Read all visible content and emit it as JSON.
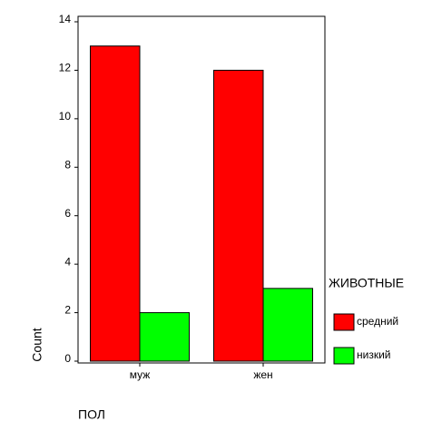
{
  "chart_data": {
    "type": "bar",
    "categories": [
      "муж",
      "жен"
    ],
    "series": [
      {
        "name": "средний",
        "color": "#ff0000",
        "values": [
          13,
          12
        ]
      },
      {
        "name": "низкий",
        "color": "#00ff00",
        "values": [
          2,
          3
        ]
      }
    ],
    "ylim": [
      0,
      14
    ],
    "yticks": [
      0,
      2,
      4,
      6,
      8,
      10,
      12,
      14
    ],
    "y_label": "Count",
    "x_label": "ПОЛ",
    "legend_title": "ЖИВОТНЫЕ",
    "legend": "right"
  }
}
